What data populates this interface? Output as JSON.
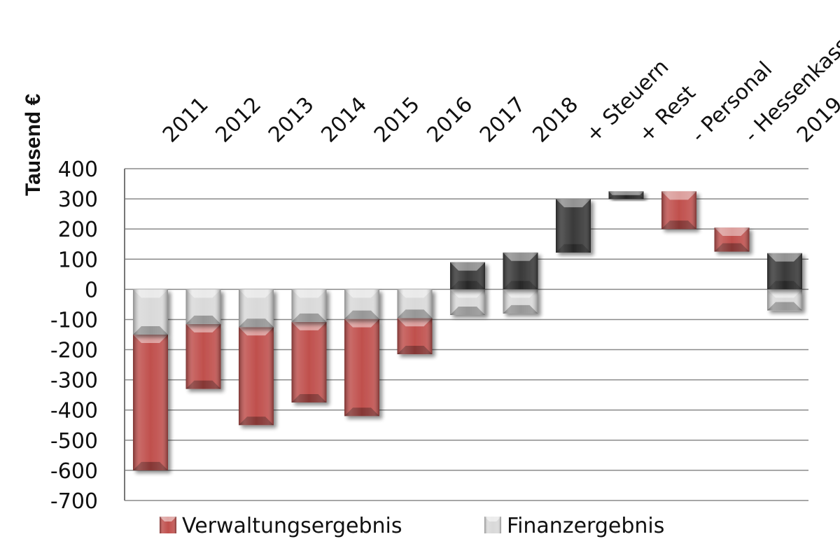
{
  "chart_data": {
    "type": "bar",
    "stacked": true,
    "ylabel": "Tausend €",
    "ylim": [
      -700,
      400
    ],
    "yticks": [
      400,
      300,
      200,
      100,
      0,
      -100,
      -200,
      -300,
      -400,
      -500,
      -600,
      -700
    ],
    "ytick_labels": [
      "400",
      "300",
      "200",
      "100",
      "0",
      "-100",
      "-200",
      "-300",
      "-400",
      "-500",
      "-600",
      "-700"
    ],
    "grid": true,
    "legend_position": "bottom",
    "categories": [
      "2011",
      "2012",
      "2013",
      "2014",
      "2015",
      "2016",
      "2017",
      "2018",
      "+ Steuern",
      "+ Rest",
      "- Personal",
      "- Hessenkasse",
      "2019"
    ],
    "series": [
      {
        "name": "Verwaltungsergebnis",
        "color": "#c0504d",
        "bars": [
          {
            "category": "2011",
            "from": -150,
            "to": -600
          },
          {
            "category": "2012",
            "from": -115,
            "to": -330
          },
          {
            "category": "2013",
            "from": -125,
            "to": -450
          },
          {
            "category": "2014",
            "from": -108,
            "to": -375
          },
          {
            "category": "2015",
            "from": -98,
            "to": -420
          },
          {
            "category": "2016",
            "from": -95,
            "to": -215
          },
          {
            "category": "- Personal",
            "from": 325,
            "to": 200
          },
          {
            "category": "- Hessenkasse",
            "from": 205,
            "to": 125
          }
        ]
      },
      {
        "name": "Finanzergebnis",
        "color": "#d9d9d9",
        "bars": [
          {
            "category": "2011",
            "from": 0,
            "to": -150
          },
          {
            "category": "2012",
            "from": 0,
            "to": -115
          },
          {
            "category": "2013",
            "from": 0,
            "to": -125
          },
          {
            "category": "2014",
            "from": 0,
            "to": -108
          },
          {
            "category": "2015",
            "from": 0,
            "to": -98
          },
          {
            "category": "2016",
            "from": 0,
            "to": -95
          },
          {
            "category": "2017",
            "from": 0,
            "to": -85
          },
          {
            "category": "2018",
            "from": 0,
            "to": -80
          },
          {
            "category": "2019",
            "from": 0,
            "to": -70
          }
        ]
      },
      {
        "color": "#3a3a3a",
        "bars": [
          {
            "category": "2017",
            "from": 0,
            "to": 90
          },
          {
            "category": "2018",
            "from": 0,
            "to": 122
          },
          {
            "category": "+ Steuern",
            "from": 122,
            "to": 300
          },
          {
            "category": "+ Rest",
            "from": 300,
            "to": 325
          },
          {
            "category": "2019",
            "from": 0,
            "to": 120
          }
        ]
      }
    ]
  }
}
